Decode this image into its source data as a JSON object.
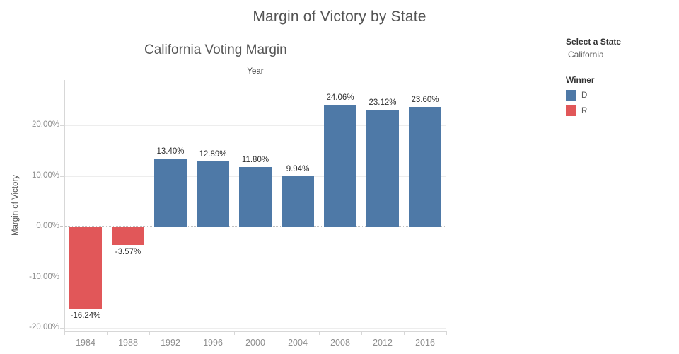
{
  "dashboard": {
    "title": "Margin of Victory by State"
  },
  "chart_data": {
    "type": "bar",
    "title": "California Voting Margin",
    "xlabel": "Year",
    "ylabel": "Margin of Victory",
    "categories": [
      "1984",
      "1988",
      "1992",
      "1996",
      "2000",
      "2004",
      "2008",
      "2012",
      "2016"
    ],
    "values": [
      -16.24,
      -3.57,
      13.4,
      12.89,
      11.8,
      9.94,
      24.06,
      23.12,
      23.6
    ],
    "labels": [
      "-16.24%",
      "-3.57%",
      "13.40%",
      "12.89%",
      "11.80%",
      "9.94%",
      "24.06%",
      "23.12%",
      "23.60%"
    ],
    "winners": [
      "R",
      "R",
      "D",
      "D",
      "D",
      "D",
      "D",
      "D",
      "D"
    ],
    "winner_colors": {
      "D": "#4e79a7",
      "R": "#e15759"
    },
    "yticks": [
      20,
      10,
      0,
      -10,
      -20
    ],
    "ytick_labels": [
      "20.00%",
      "10.00%",
      "0.00%",
      "-10.00%",
      "-20.00%"
    ],
    "ylim": [
      -20.7,
      29
    ],
    "grid": "horizontal-light",
    "zero_line": "dotted",
    "legend_position": "right"
  },
  "side_panel": {
    "filter_label": "Select a State",
    "filter_value": "California",
    "legend_title": "Winner",
    "legend_items": [
      {
        "label": "D",
        "color": "#4e79a7"
      },
      {
        "label": "R",
        "color": "#e15759"
      }
    ]
  }
}
